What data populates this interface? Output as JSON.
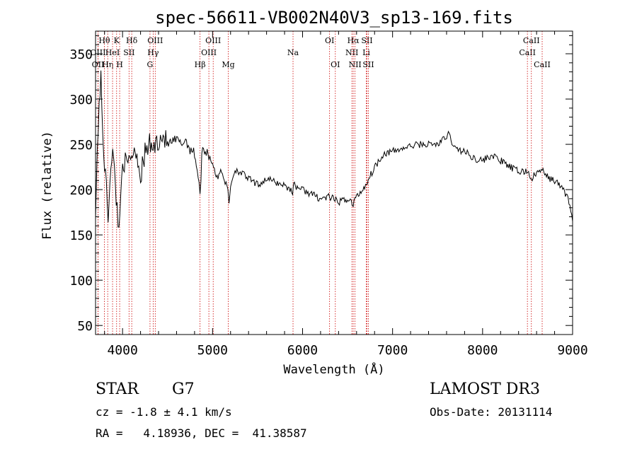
{
  "chart_data": {
    "type": "line",
    "title": "spec-56611-VB002N40V3_sp13-169.fits",
    "xlabel": "Wavelength (Å)",
    "ylabel": "Flux (relative)",
    "xlim": [
      3700,
      9000
    ],
    "ylim": [
      40,
      375
    ],
    "xticks": [
      4000,
      5000,
      6000,
      7000,
      8000,
      9000
    ],
    "yticks": [
      50,
      100,
      150,
      200,
      250,
      300,
      350
    ],
    "grid": false,
    "series": [
      {
        "name": "flux",
        "x": [
          3700,
          3720,
          3740,
          3760,
          3780,
          3800,
          3820,
          3840,
          3860,
          3880,
          3900,
          3920,
          3940,
          3960,
          3980,
          4000,
          4050,
          4100,
          4150,
          4200,
          4250,
          4300,
          4340,
          4400,
          4450,
          4500,
          4550,
          4600,
          4650,
          4700,
          4750,
          4800,
          4850,
          4861,
          4880,
          4900,
          4950,
          5000,
          5050,
          5100,
          5150,
          5170,
          5183,
          5200,
          5250,
          5300,
          5400,
          5500,
          5600,
          5700,
          5800,
          5890,
          5900,
          6000,
          6100,
          6200,
          6300,
          6400,
          6500,
          6540,
          6563,
          6580,
          6600,
          6650,
          6700,
          6750,
          6800,
          6900,
          7000,
          7100,
          7200,
          7300,
          7400,
          7500,
          7600,
          7620,
          7650,
          7700,
          7800,
          7900,
          8000,
          8100,
          8200,
          8300,
          8400,
          8500,
          8542,
          8600,
          8662,
          8700,
          8800,
          8850,
          8900,
          8950,
          8980,
          9000
        ],
        "y": [
          180,
          240,
          300,
          320,
          260,
          230,
          200,
          170,
          215,
          240,
          235,
          200,
          185,
          150,
          195,
          235,
          225,
          240,
          245,
          215,
          240,
          250,
          245,
          255,
          260,
          250,
          252,
          255,
          250,
          255,
          245,
          240,
          210,
          190,
          240,
          245,
          240,
          230,
          212,
          222,
          205,
          200,
          185,
          205,
          222,
          220,
          212,
          205,
          212,
          208,
          205,
          198,
          205,
          200,
          195,
          190,
          192,
          186,
          190,
          187,
          182,
          190,
          192,
          198,
          205,
          215,
          225,
          240,
          242,
          245,
          248,
          250,
          250,
          250,
          258,
          262,
          255,
          245,
          242,
          235,
          232,
          238,
          232,
          225,
          220,
          220,
          212,
          218,
          222,
          215,
          210,
          205,
          200,
          190,
          178,
          165
        ]
      }
    ],
    "line_markers": [
      {
        "name": "OII",
        "wavelength": 3727,
        "row": 3
      },
      {
        "name": "Hθ",
        "wavelength": 3798,
        "row": 1
      },
      {
        "name": "OIII",
        "wavelength": 3727,
        "row": 2
      },
      {
        "name": "Hη",
        "wavelength": 3835,
        "row": 3
      },
      {
        "name": "HeI",
        "wavelength": 3889,
        "row": 2
      },
      {
        "name": "K",
        "wavelength": 3934,
        "row": 1
      },
      {
        "name": "H",
        "wavelength": 3968,
        "row": 3
      },
      {
        "name": "SII",
        "wavelength": 4072,
        "row": 2
      },
      {
        "name": "Hδ",
        "wavelength": 4102,
        "row": 1
      },
      {
        "name": "G",
        "wavelength": 4305,
        "row": 3
      },
      {
        "name": "Hγ",
        "wavelength": 4340,
        "row": 2
      },
      {
        "name": "OIII",
        "wavelength": 4363,
        "row": 1
      },
      {
        "name": "Hβ",
        "wavelength": 4861,
        "row": 3
      },
      {
        "name": "OIII",
        "wavelength": 4959,
        "row": 2
      },
      {
        "name": "OIII",
        "wavelength": 5007,
        "row": 1
      },
      {
        "name": "Mg",
        "wavelength": 5175,
        "row": 3
      },
      {
        "name": "Na",
        "wavelength": 5894,
        "row": 2
      },
      {
        "name": "OI",
        "wavelength": 6300,
        "row": 1
      },
      {
        "name": "OI",
        "wavelength": 6364,
        "row": 3
      },
      {
        "name": "NII",
        "wavelength": 6548,
        "row": 2
      },
      {
        "name": "Hα",
        "wavelength": 6563,
        "row": 1
      },
      {
        "name": "NII",
        "wavelength": 6583,
        "row": 3
      },
      {
        "name": "Li",
        "wavelength": 6708,
        "row": 2
      },
      {
        "name": "SII",
        "wavelength": 6716,
        "row": 1
      },
      {
        "name": "SII",
        "wavelength": 6731,
        "row": 3
      },
      {
        "name": "CaII",
        "wavelength": 8498,
        "row": 2
      },
      {
        "name": "CaII",
        "wavelength": 8542,
        "row": 1
      },
      {
        "name": "CaII",
        "wavelength": 8662,
        "row": 3
      }
    ],
    "colors": {
      "line": "#000000",
      "marker": "#cc0000",
      "axis": "#000000"
    }
  },
  "info": {
    "class_label": "STAR",
    "subclass": "G7",
    "survey": "LAMOST DR3",
    "cz_text": "cz = -1.8 ± 4.1 km/s",
    "obs_date": "Obs-Date: 20131114",
    "radec_text": "RA =   4.18936, DEC =  41.38587"
  }
}
